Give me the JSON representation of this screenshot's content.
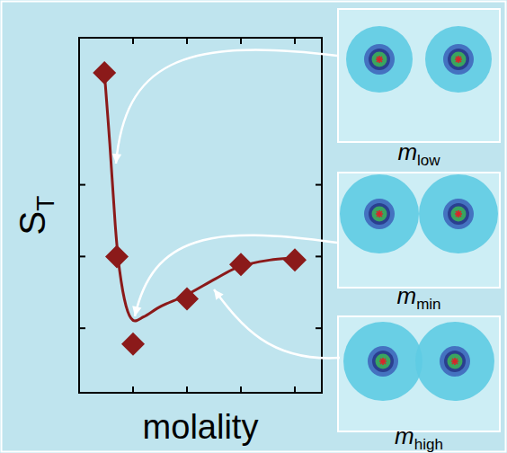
{
  "chart_data": {
    "type": "scatter",
    "xlabel": "molality",
    "ylabel": {
      "text": "S",
      "sub": "T"
    },
    "xlim": [
      0,
      4.5
    ],
    "ylim": [
      0.1,
      5.05
    ],
    "xticks": [
      1,
      2,
      3,
      4
    ],
    "yticks": [
      1,
      2,
      3
    ],
    "tick_labels": false,
    "grid": false,
    "series": [
      {
        "type": "scatter",
        "color": "#8b1a1a",
        "marker": "diamond",
        "x": [
          0.47,
          0.7,
          1.0,
          2.0,
          3.0,
          4.0
        ],
        "values": [
          4.56,
          2.0,
          0.78,
          1.41,
          1.89,
          1.95
        ]
      },
      {
        "type": "line",
        "color": "#8b1a1a",
        "line_style": "solid",
        "x": [
          0.47,
          0.57,
          0.67,
          0.75,
          0.87,
          1.0,
          1.2,
          1.53,
          1.98,
          2.53,
          2.97,
          3.53,
          3.98
        ],
        "values": [
          4.56,
          3.56,
          2.44,
          1.81,
          1.31,
          1.11,
          1.16,
          1.31,
          1.46,
          1.69,
          1.86,
          1.95,
          1.98
        ]
      }
    ],
    "annotations": [
      {
        "text": "m",
        "sub": "low"
      },
      {
        "text": "m",
        "sub": "min"
      },
      {
        "text": "m",
        "sub": "high"
      }
    ]
  }
}
